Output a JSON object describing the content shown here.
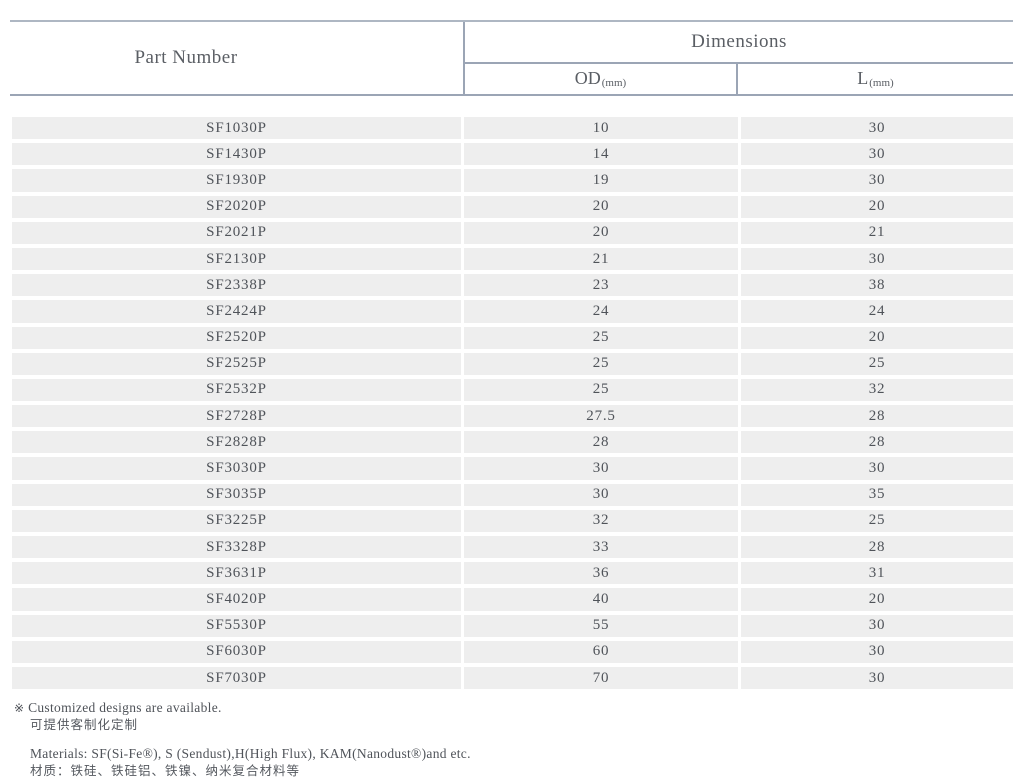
{
  "table": {
    "header": {
      "part_number": "Part Number",
      "dimensions": "Dimensions",
      "od_label": "OD",
      "od_unit": "(mm)",
      "l_label": "L",
      "l_unit": "(mm)"
    },
    "rows": [
      {
        "part": "SF1030P",
        "od": "10",
        "l": "30"
      },
      {
        "part": "SF1430P",
        "od": "14",
        "l": "30"
      },
      {
        "part": "SF1930P",
        "od": "19",
        "l": "30"
      },
      {
        "part": "SF2020P",
        "od": "20",
        "l": "20"
      },
      {
        "part": "SF2021P",
        "od": "20",
        "l": "21"
      },
      {
        "part": "SF2130P",
        "od": "21",
        "l": "30"
      },
      {
        "part": "SF2338P",
        "od": "23",
        "l": "38"
      },
      {
        "part": "SF2424P",
        "od": "24",
        "l": "24"
      },
      {
        "part": "SF2520P",
        "od": "25",
        "l": "20"
      },
      {
        "part": "SF2525P",
        "od": "25",
        "l": "25"
      },
      {
        "part": "SF2532P",
        "od": "25",
        "l": "32"
      },
      {
        "part": "SF2728P",
        "od": "27.5",
        "l": "28"
      },
      {
        "part": "SF2828P",
        "od": "28",
        "l": "28"
      },
      {
        "part": "SF3030P",
        "od": "30",
        "l": "30"
      },
      {
        "part": "SF3035P",
        "od": "30",
        "l": "35"
      },
      {
        "part": "SF3225P",
        "od": "32",
        "l": "25"
      },
      {
        "part": "SF3328P",
        "od": "33",
        "l": "28"
      },
      {
        "part": "SF3631P",
        "od": "36",
        "l": "31"
      },
      {
        "part": "SF4020P",
        "od": "40",
        "l": "20"
      },
      {
        "part": "SF5530P",
        "od": "55",
        "l": "30"
      },
      {
        "part": "SF6030P",
        "od": "60",
        "l": "30"
      },
      {
        "part": "SF7030P",
        "od": "70",
        "l": "30"
      }
    ]
  },
  "notes": {
    "marker": "※",
    "customized_en": "Customized designs are available.",
    "customized_zh": "可提供客制化定制",
    "materials_en": "Materials: SF(Si-Fe®), S (Sendust),H(High Flux), KAM(Nanodust®)and etc.",
    "materials_zh": "材质：铁硅、铁硅铝、铁镍、纳米复合材料等"
  },
  "colors": {
    "border": "#9ba5b5",
    "row_background": "#eeeeee",
    "text": "#4f5359"
  }
}
